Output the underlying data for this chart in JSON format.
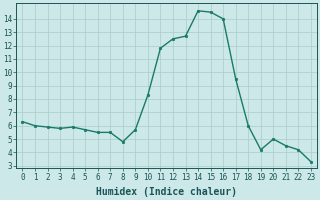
{
  "x": [
    0,
    1,
    2,
    3,
    4,
    5,
    6,
    7,
    8,
    9,
    10,
    11,
    12,
    13,
    14,
    15,
    16,
    17,
    18,
    19,
    20,
    21,
    22,
    23
  ],
  "y": [
    6.3,
    6.0,
    5.9,
    5.8,
    5.9,
    5.7,
    5.5,
    5.5,
    4.8,
    5.7,
    8.3,
    11.8,
    12.5,
    12.7,
    14.6,
    14.5,
    14.0,
    9.5,
    6.0,
    4.2,
    5.0,
    4.5,
    4.2,
    3.3
  ],
  "line_color": "#1a7a6a",
  "marker": "o",
  "marker_size": 1.8,
  "bg_color": "#cce8e8",
  "grid_color": "#aacccc",
  "axis_color": "#1a5555",
  "xlabel": "Humidex (Indice chaleur)",
  "ylim": [
    2.8,
    15.2
  ],
  "xlim": [
    -0.5,
    23.5
  ],
  "yticks": [
    3,
    4,
    5,
    6,
    7,
    8,
    9,
    10,
    11,
    12,
    13,
    14
  ],
  "xticks": [
    0,
    1,
    2,
    3,
    4,
    5,
    6,
    7,
    8,
    9,
    10,
    11,
    12,
    13,
    14,
    15,
    16,
    17,
    18,
    19,
    20,
    21,
    22,
    23
  ],
  "tick_fontsize": 5.5,
  "label_fontsize": 7.0,
  "linewidth": 1.0
}
